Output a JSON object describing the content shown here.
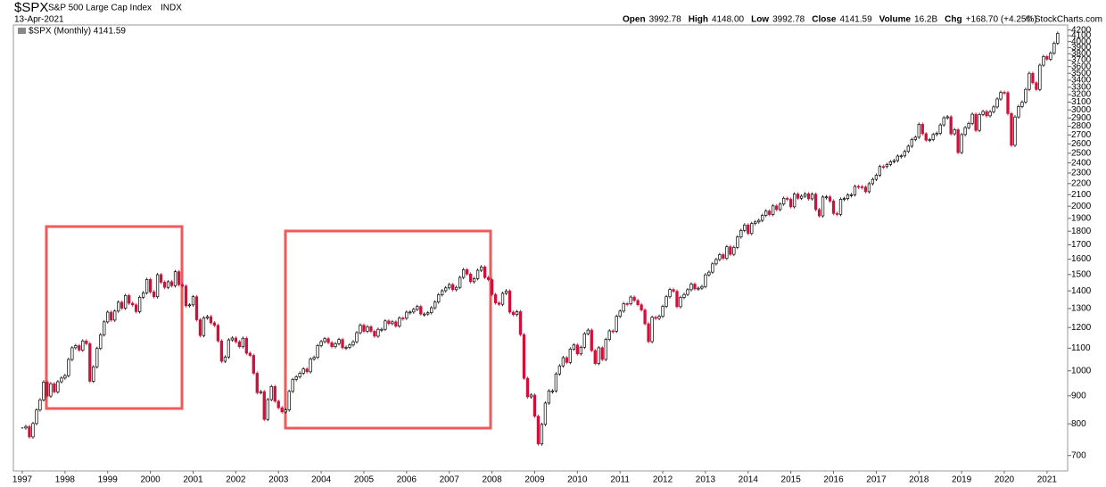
{
  "header": {
    "symbol": "$SPX",
    "name": "S&P 500 Large Cap Index",
    "exchange": "INDX",
    "date": "13-Apr-2021",
    "stats": [
      {
        "label": "Open",
        "value": "3992.78"
      },
      {
        "label": "High",
        "value": "4148.00"
      },
      {
        "label": "Low",
        "value": "3992.78"
      },
      {
        "label": "Close",
        "value": "4141.59"
      },
      {
        "label": "Volume",
        "value": "16.2B"
      },
      {
        "label": "Chg",
        "value": "+168.70 (+4.25%)"
      }
    ],
    "legend": "$SPX (Monthly) 4141.59",
    "credit": "© StockCharts.com"
  },
  "chart_data": {
    "type": "candlestick",
    "log_scale": true,
    "grid": false,
    "up_color": "#000000",
    "down_color": "#d0103a",
    "x_labels": [
      "1997",
      "1998",
      "1999",
      "2000",
      "2001",
      "2002",
      "2003",
      "2004",
      "2005",
      "2006",
      "2007",
      "2008",
      "2009",
      "2010",
      "2011",
      "2012",
      "2013",
      "2014",
      "2015",
      "2016",
      "2017",
      "2018",
      "2019",
      "2020",
      "2021"
    ],
    "ylim": [
      656,
      4290
    ],
    "yticks": [
      700,
      800,
      900,
      1000,
      1100,
      1200,
      1300,
      1400,
      1500,
      1600,
      1700,
      1800,
      1900,
      2000,
      2100,
      2200,
      2300,
      2400,
      2500,
      2600,
      2700,
      2800,
      2900,
      3000,
      3100,
      3200,
      3300,
      3400,
      3500,
      3600,
      3700,
      3800,
      3900,
      4000,
      4100,
      4200
    ],
    "values": [
      786,
      791,
      757,
      801,
      848,
      885,
      954,
      899,
      947,
      915,
      955,
      970,
      980,
      1049,
      1102,
      1112,
      1091,
      1134,
      1121,
      957,
      1017,
      1099,
      1164,
      1229,
      1280,
      1238,
      1286,
      1335,
      1302,
      1373,
      1329,
      1320,
      1283,
      1363,
      1389,
      1469,
      1394,
      1366,
      1499,
      1452,
      1421,
      1455,
      1431,
      1518,
      1437,
      1429,
      1315,
      1320,
      1366,
      1240,
      1160,
      1249,
      1256,
      1224,
      1211,
      1134,
      1041,
      1060,
      1139,
      1148,
      1130,
      1107,
      1147,
      1077,
      1067,
      990,
      912,
      916,
      815,
      886,
      936,
      880,
      856,
      841,
      848,
      917,
      964,
      975,
      990,
      1008,
      996,
      1051,
      1058,
      1112,
      1131,
      1145,
      1126,
      1107,
      1121,
      1141,
      1102,
      1104,
      1115,
      1130,
      1174,
      1212,
      1181,
      1204,
      1181,
      1157,
      1191,
      1191,
      1234,
      1220,
      1229,
      1207,
      1249,
      1248,
      1280,
      1281,
      1295,
      1311,
      1270,
      1270,
      1277,
      1304,
      1336,
      1378,
      1401,
      1418,
      1438,
      1407,
      1421,
      1482,
      1531,
      1503,
      1455,
      1474,
      1527,
      1549,
      1481,
      1468,
      1379,
      1331,
      1323,
      1386,
      1400,
      1280,
      1267,
      1283,
      1165,
      969,
      896,
      903,
      826,
      735,
      798,
      873,
      919,
      919,
      987,
      1021,
      1057,
      1036,
      1096,
      1115,
      1074,
      1104,
      1169,
      1187,
      1089,
      1031,
      1102,
      1049,
      1141,
      1183,
      1181,
      1258,
      1286,
      1327,
      1326,
      1364,
      1345,
      1321,
      1292,
      1219,
      1131,
      1253,
      1247,
      1258,
      1312,
      1366,
      1408,
      1398,
      1310,
      1362,
      1379,
      1407,
      1441,
      1412,
      1416,
      1426,
      1498,
      1515,
      1569,
      1598,
      1631,
      1606,
      1686,
      1633,
      1682,
      1757,
      1806,
      1848,
      1783,
      1859,
      1872,
      1884,
      1924,
      1960,
      1931,
      2003,
      1972,
      2018,
      2068,
      2059,
      1995,
      2105,
      2068,
      2086,
      2107,
      2063,
      2104,
      1972,
      1920,
      2079,
      2080,
      2044,
      1940,
      1932,
      2060,
      2065,
      2097,
      2099,
      2174,
      2171,
      2168,
      2126,
      2199,
      2239,
      2279,
      2364,
      2363,
      2384,
      2412,
      2423,
      2470,
      2472,
      2519,
      2575,
      2648,
      2674,
      2824,
      2714,
      2641,
      2648,
      2705,
      2718,
      2816,
      2902,
      2914,
      2712,
      2760,
      2507,
      2704,
      2784,
      2834,
      2946,
      2752,
      2942,
      2980,
      2926,
      2977,
      3038,
      3141,
      3231,
      3226,
      2954,
      2585,
      2912,
      3044,
      3100,
      3271,
      3500,
      3363,
      3270,
      3622,
      3756,
      3714,
      3811,
      3973,
      4142
    ]
  }
}
